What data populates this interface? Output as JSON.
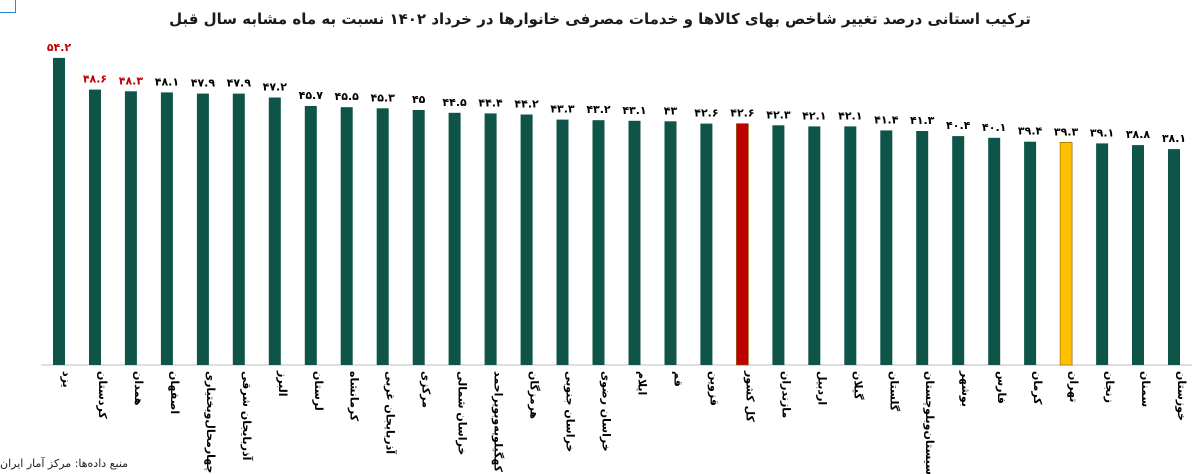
{
  "colors": {
    "bar_default": "#0f5449",
    "bar_national": "#c00000",
    "bar_tehran": "#ffc000",
    "label_default": "#000000",
    "label_highlight": "#c00000",
    "axis": "#bfbfbf"
  },
  "source": "منبع داده‌ها: مرکز آمار ایران",
  "chart_data": {
    "type": "bar",
    "title": "ترکیب استانی درصد تغییر شاخص بهای کالاها و خدمات مصرفی خانوارها در خرداد ۱۴۰۲ نسبت به ماه مشابه سال قبل",
    "ylim": [
      0,
      57
    ],
    "grid": false,
    "legend": "none",
    "categories": [
      "یزد",
      "کردستان",
      "همدان",
      "اصفهان",
      "چهارمحال‌وبختیاری",
      "آذربایجان شرقی",
      "البرز",
      "لرستان",
      "کرمانشاه",
      "آذربایجان غربی",
      "مرکزی",
      "خراسان شمالی",
      "کهگیلویه‌وبویراحمد",
      "هرمزگان",
      "خراسان جنوبی",
      "خراسان رضوی",
      "ایلام",
      "قم",
      "قزوین",
      "کل کشور",
      "مازندران",
      "اردبیل",
      "گیلان",
      "گلستان",
      "سیستان‌وبلوچستان",
      "بوشهر",
      "فارس",
      "کرمان",
      "تهران",
      "زنجان",
      "سمنان",
      "خوزستان"
    ],
    "values": [
      54.2,
      48.6,
      48.3,
      48.1,
      47.9,
      47.9,
      47.2,
      45.7,
      45.5,
      45.3,
      45,
      44.5,
      44.4,
      44.2,
      43.3,
      43.2,
      43.1,
      43,
      42.6,
      42.6,
      42.3,
      42.1,
      42.1,
      41.4,
      41.3,
      40.4,
      40.1,
      39.4,
      39.3,
      39.1,
      38.8,
      38.1
    ],
    "value_labels": [
      "۵۴.۲",
      "۴۸.۶",
      "۴۸.۳",
      "۴۸.۱",
      "۴۷.۹",
      "۴۷.۹",
      "۴۷.۲",
      "۴۵.۷",
      "۴۵.۵",
      "۴۵.۳",
      "۴۵",
      "۴۴.۵",
      "۴۴.۴",
      "۴۴.۲",
      "۴۳.۳",
      "۴۳.۲",
      "۴۳.۱",
      "۴۳",
      "۴۲.۶",
      "۴۲.۶",
      "۴۲.۳",
      "۴۲.۱",
      "۴۲.۱",
      "۴۱.۴",
      "۴۱.۳",
      "۴۰.۴",
      "۴۰.۱",
      "۳۹.۴",
      "۳۹.۳",
      "۳۹.۱",
      "۳۸.۸",
      "۳۸.۱"
    ],
    "highlighted_labels": [
      "یزد",
      "کردستان",
      "همدان"
    ],
    "highlighted_bars": {
      "کل کشور": "national",
      "تهران": "tehran"
    }
  }
}
